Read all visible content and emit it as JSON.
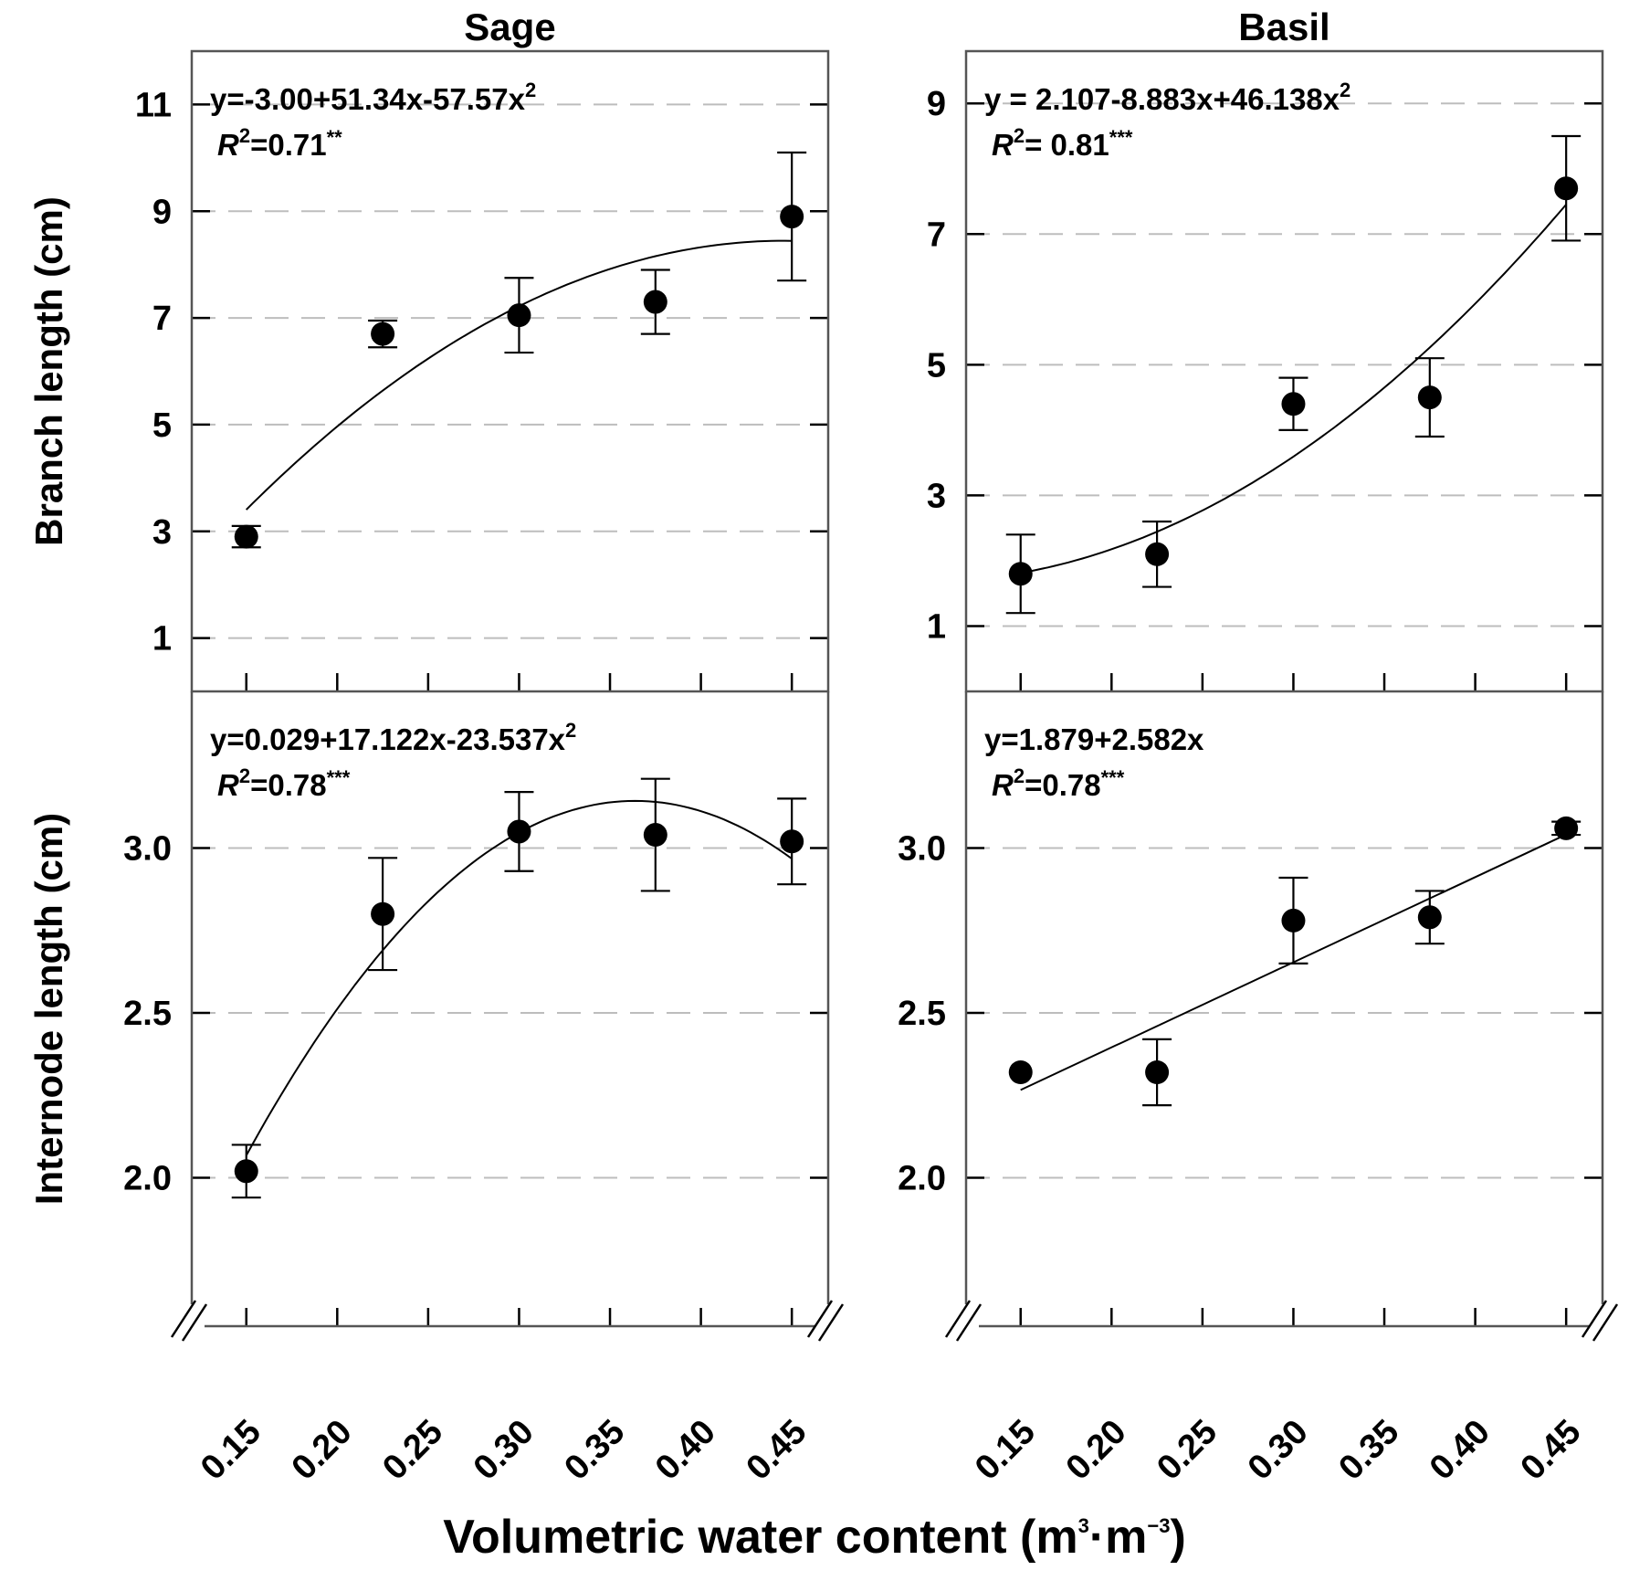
{
  "figure": {
    "x_axis_label": "Volumetric water content (m",
    "x_axis_unit_mid": "·m",
    "x_axis_exp1": "3",
    "x_axis_exp2": "−3",
    "x_axis_close": ")"
  },
  "chart_data": [
    {
      "type": "scatter",
      "panel": "top-left",
      "title": "Sage",
      "ylabel": "Branch length (cm)",
      "xlabel": "Volumetric water content (m³·m⁻³)",
      "xlim": [
        0.12,
        0.47
      ],
      "ylim": [
        0,
        12
      ],
      "xticks": [
        "0.15",
        "0.20",
        "0.25",
        "0.30",
        "0.35",
        "0.40",
        "0.45"
      ],
      "xtick_values": [
        0.15,
        0.2,
        0.25,
        0.3,
        0.35,
        0.4,
        0.45
      ],
      "yticks": [
        "1",
        "3",
        "5",
        "7",
        "9",
        "11"
      ],
      "ytick_values": [
        1,
        3,
        5,
        7,
        9,
        11
      ],
      "grid": true,
      "x": [
        0.15,
        0.225,
        0.3,
        0.375,
        0.45
      ],
      "y": [
        2.9,
        6.7,
        7.05,
        7.3,
        8.9
      ],
      "err": [
        0.2,
        0.25,
        0.7,
        0.6,
        1.2
      ],
      "fit": {
        "coef": [
          -3.0,
          51.34,
          -57.57
        ],
        "from": 0.15,
        "to": 0.45
      },
      "equation": {
        "main": "y=-3.00+51.34x-57.57x",
        "exp": "2",
        "r2_prefix": "R",
        "r2_exp": "2",
        "r2_value": "=0.71",
        "sig": "**"
      }
    },
    {
      "type": "scatter",
      "panel": "top-right",
      "title": "Basil",
      "ylabel": "",
      "xlabel": "Volumetric water content (m³·m⁻³)",
      "xlim": [
        0.12,
        0.47
      ],
      "ylim": [
        0,
        9.8
      ],
      "xticks": [
        "0.15",
        "0.20",
        "0.25",
        "0.30",
        "0.35",
        "0.40",
        "0.45"
      ],
      "xtick_values": [
        0.15,
        0.2,
        0.25,
        0.3,
        0.35,
        0.4,
        0.45
      ],
      "yticks": [
        "1",
        "3",
        "5",
        "7",
        "9"
      ],
      "ytick_values": [
        1,
        3,
        5,
        7,
        9
      ],
      "grid": true,
      "x": [
        0.15,
        0.225,
        0.3,
        0.375,
        0.45
      ],
      "y": [
        1.8,
        2.1,
        4.4,
        4.5,
        7.7
      ],
      "err": [
        0.6,
        0.5,
        0.4,
        0.6,
        0.8
      ],
      "fit": {
        "coef": [
          2.107,
          -8.883,
          46.138
        ],
        "from": 0.15,
        "to": 0.45
      },
      "equation": {
        "main": "y = 2.107-8.883x+46.138x",
        "exp": "2",
        "r2_prefix": "R",
        "r2_exp": "2",
        "r2_value": "= 0.81",
        "sig": "***"
      }
    },
    {
      "type": "scatter",
      "panel": "bottom-left",
      "title": "",
      "ylabel": "Internode length (cm)",
      "xlabel": "Volumetric water content (m³·m⁻³)",
      "xlim": [
        0.12,
        0.47
      ],
      "ylim": [
        1.55,
        3.475
      ],
      "xticks": [
        "0.15",
        "0.20",
        "0.25",
        "0.30",
        "0.35",
        "0.40",
        "0.45"
      ],
      "xtick_values": [
        0.15,
        0.2,
        0.25,
        0.3,
        0.35,
        0.4,
        0.45
      ],
      "yticks": [
        "2.0",
        "2.5",
        "3.0"
      ],
      "ytick_values": [
        2.0,
        2.5,
        3.0
      ],
      "grid": true,
      "axis_break": true,
      "x": [
        0.15,
        0.225,
        0.3,
        0.375,
        0.45
      ],
      "y": [
        2.02,
        2.8,
        3.05,
        3.04,
        3.02
      ],
      "err": [
        0.08,
        0.17,
        0.12,
        0.17,
        0.13
      ],
      "fit": {
        "coef": [
          0.029,
          17.122,
          -23.537
        ],
        "from": 0.15,
        "to": 0.45
      },
      "equation": {
        "main": "y=0.029+17.122x-23.537x",
        "exp": "2",
        "r2_prefix": "R",
        "r2_exp": "2",
        "r2_value": "=0.78",
        "sig": "***"
      }
    },
    {
      "type": "scatter",
      "panel": "bottom-right",
      "title": "",
      "ylabel": "",
      "xlabel": "Volumetric water content (m³·m⁻³)",
      "xlim": [
        0.12,
        0.47
      ],
      "ylim": [
        1.55,
        3.475
      ],
      "xticks": [
        "0.15",
        "0.20",
        "0.25",
        "0.30",
        "0.35",
        "0.40",
        "0.45"
      ],
      "xtick_values": [
        0.15,
        0.2,
        0.25,
        0.3,
        0.35,
        0.4,
        0.45
      ],
      "yticks": [
        "2.0",
        "2.5",
        "3.0"
      ],
      "ytick_values": [
        2.0,
        2.5,
        3.0
      ],
      "grid": true,
      "axis_break": true,
      "x": [
        0.15,
        0.225,
        0.3,
        0.375,
        0.45
      ],
      "y": [
        2.32,
        2.32,
        2.78,
        2.79,
        3.06
      ],
      "err": [
        0.0,
        0.1,
        0.13,
        0.08,
        0.02
      ],
      "fit": {
        "coef": [
          1.879,
          2.582,
          0
        ],
        "from": 0.15,
        "to": 0.45
      },
      "equation": {
        "main": "y=1.879+2.582x",
        "exp": "",
        "r2_prefix": "R",
        "r2_exp": "2",
        "r2_value": "=0.78",
        "sig": "***"
      }
    }
  ]
}
